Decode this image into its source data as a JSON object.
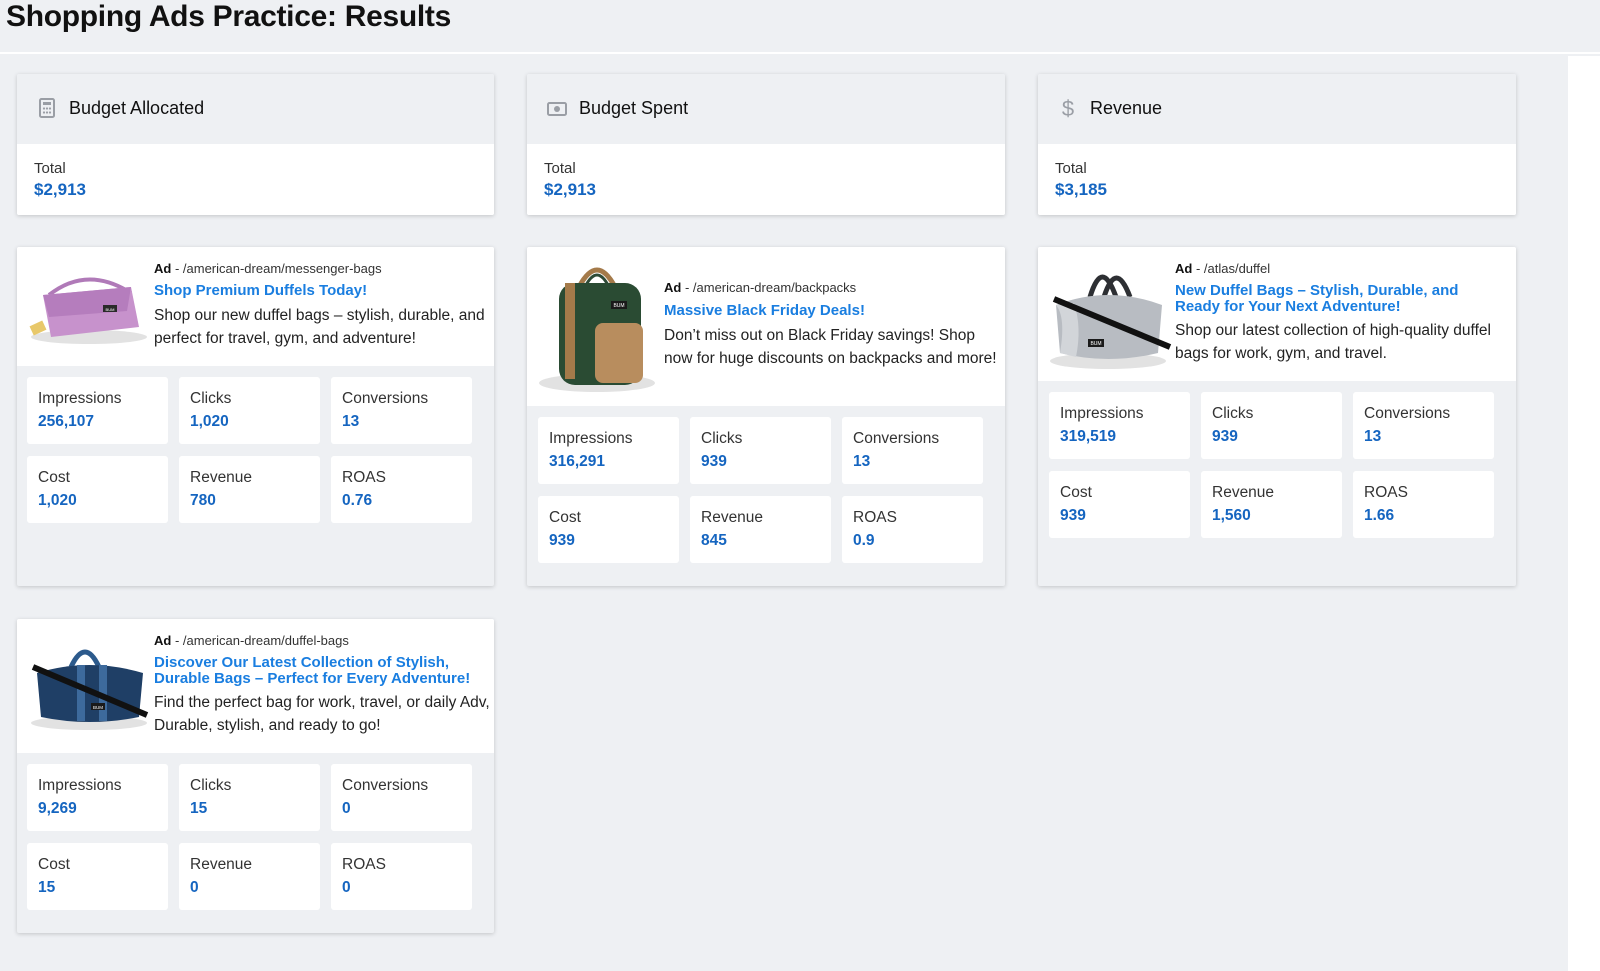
{
  "page": {
    "title": "Shopping Ads Practice: Results"
  },
  "summary": [
    {
      "title": "Budget Allocated",
      "icon": "calculator-icon",
      "label": "Total",
      "value": "$2,913"
    },
    {
      "title": "Budget Spent",
      "icon": "money-icon",
      "label": "Total",
      "value": "$2,913"
    },
    {
      "title": "Revenue",
      "icon": "dollar-icon",
      "label": "Total",
      "value": "$3,185"
    }
  ],
  "ads": [
    {
      "ad_tag": "Ad",
      "path": " - /american-dream/messenger-bags",
      "headline": "Shop Premium Duffels Today!",
      "description": "Shop our new duffel bags – stylish, durable, and perfect for travel, gym, and adventure!",
      "image": "messenger-bag-image",
      "metrics": {
        "impressions_label": "Impressions",
        "impressions": "256,107",
        "clicks_label": "Clicks",
        "clicks": "1,020",
        "conversions_label": "Conversions",
        "conversions": "13",
        "cost_label": "Cost",
        "cost": "1,020",
        "revenue_label": "Revenue",
        "revenue": "780",
        "roas_label": "ROAS",
        "roas": "0.76"
      }
    },
    {
      "ad_tag": "Ad",
      "path": " - /american-dream/backpacks",
      "headline": "Massive Black Friday Deals!",
      "description": "Don’t miss out on Black Friday savings! Shop now for huge discounts on backpacks and more!",
      "image": "backpack-image",
      "metrics": {
        "impressions_label": "Impressions",
        "impressions": "316,291",
        "clicks_label": "Clicks",
        "clicks": "939",
        "conversions_label": "Conversions",
        "conversions": "13",
        "cost_label": "Cost",
        "cost": "939",
        "revenue_label": "Revenue",
        "revenue": "845",
        "roas_label": "ROAS",
        "roas": "0.9"
      }
    },
    {
      "ad_tag": "Ad",
      "path": " - /atlas/duffel",
      "headline": "New Duffel Bags – Stylish, Durable, and Ready for Your Next Adventure!",
      "description": "Shop our latest collection of high-quality duffel bags for work, gym, and travel.",
      "image": "grey-duffel-image",
      "metrics": {
        "impressions_label": "Impressions",
        "impressions": "319,519",
        "clicks_label": "Clicks",
        "clicks": "939",
        "conversions_label": "Conversions",
        "conversions": "13",
        "cost_label": "Cost",
        "cost": "939",
        "revenue_label": "Revenue",
        "revenue": "1,560",
        "roas_label": "ROAS",
        "roas": "1.66"
      }
    },
    {
      "ad_tag": "Ad",
      "path": " - /american-dream/duffel-bags",
      "headline": "Discover Our Latest Collection of Stylish, Durable Bags – Perfect for Every Adventure!",
      "description": "Find the perfect bag for work, travel, or daily Adv, Durable, stylish, and ready to go!",
      "image": "navy-duffel-image",
      "metrics": {
        "impressions_label": "Impressions",
        "impressions": "9,269",
        "clicks_label": "Clicks",
        "clicks": "15",
        "conversions_label": "Conversions",
        "conversions": "0",
        "cost_label": "Cost",
        "cost": "15",
        "revenue_label": "Revenue",
        "revenue": "0",
        "roas_label": "ROAS",
        "roas": "0"
      }
    }
  ],
  "brand_badge": "BUM",
  "colors": {
    "accent": "#1565c0",
    "headline": "#1a7ee0",
    "background": "#eef0f3"
  }
}
